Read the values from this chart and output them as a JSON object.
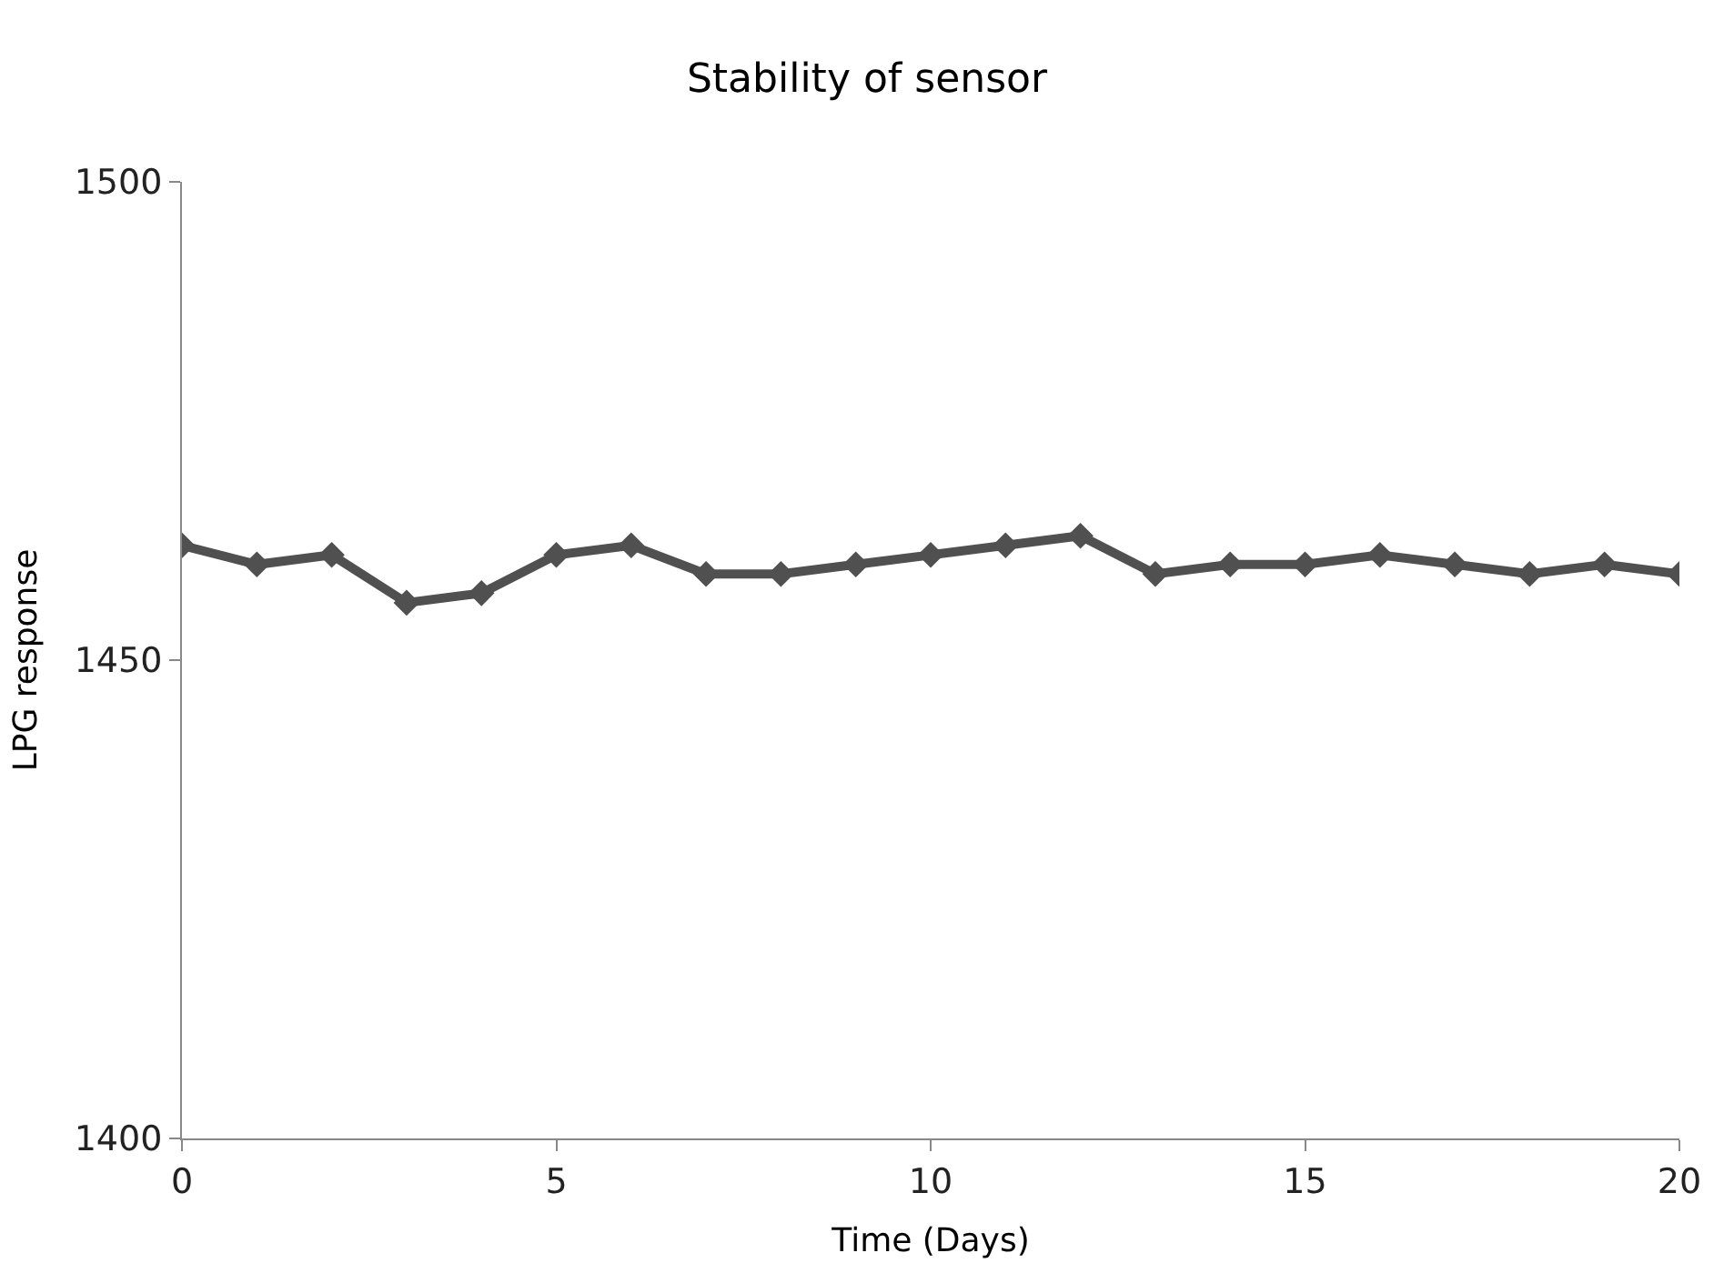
{
  "chart_data": {
    "type": "line",
    "title": "Stability of sensor",
    "xlabel": "Time (Days)",
    "ylabel": "LPG response",
    "x": [
      0,
      1,
      2,
      3,
      4,
      5,
      6,
      7,
      8,
      9,
      10,
      11,
      12,
      13,
      14,
      15,
      16,
      17,
      18,
      19,
      20
    ],
    "series": [
      {
        "color": "#505050",
        "values": [
          1462,
          1460,
          1461,
          1456,
          1457,
          1461,
          1462,
          1459,
          1459,
          1460,
          1461,
          1462,
          1463,
          1459,
          1460,
          1460,
          1461,
          1460,
          1459,
          1460,
          1459
        ]
      }
    ],
    "xlim": [
      0,
      20
    ],
    "xticks": [
      0,
      5,
      10,
      15,
      20
    ],
    "ylim": [
      1400,
      1500
    ],
    "yticks": [
      1400,
      1450,
      1500
    ],
    "marker": "diamond",
    "line_style": "solid"
  }
}
